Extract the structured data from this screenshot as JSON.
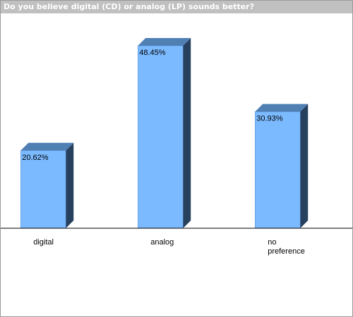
{
  "title": "Do you believe digital (CD) or analog (LP) sounds better?",
  "colors": {
    "bar_front": "#7bbaff",
    "bar_top": "#4f7fb3",
    "bar_side": "#26405e",
    "title_bar": "#c0c0c0",
    "axis": "#000000"
  },
  "chart_data": {
    "type": "bar",
    "title": "Do you believe digital (CD) or analog (LP) sounds better?",
    "categories": [
      [
        "digital"
      ],
      [
        "analog"
      ],
      [
        "no",
        "preference"
      ]
    ],
    "values": [
      20.62,
      48.45,
      30.93
    ],
    "value_labels": [
      "20.62%",
      "48.45%",
      "30.93%"
    ],
    "unit": "%",
    "ylim": [
      0,
      55
    ],
    "grid": false,
    "legend": "none",
    "style": "3d"
  }
}
